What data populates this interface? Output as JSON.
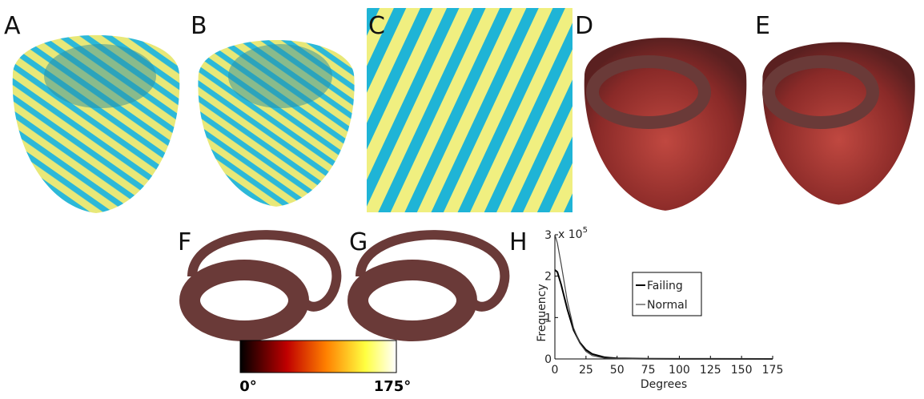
{
  "panels": {
    "labels": [
      "A",
      "B",
      "C",
      "D",
      "E",
      "F",
      "G",
      "H"
    ]
  },
  "colorbar": {
    "min_label": "0°",
    "max_label": "175°"
  },
  "chart_data": {
    "type": "line",
    "x_label": "Degrees",
    "y_label": "Frequency",
    "y_multiplier": {
      "base": "x 10",
      "exponent": "5"
    },
    "x": [
      0,
      2,
      5,
      10,
      15,
      20,
      25,
      30,
      40,
      50,
      75,
      100,
      175
    ],
    "series": [
      {
        "name": "Failing",
        "color": "#000000",
        "values": [
          2.15,
          2.1,
          1.8,
          1.2,
          0.7,
          0.4,
          0.22,
          0.12,
          0.04,
          0.015,
          0.005,
          0.002,
          0
        ]
      },
      {
        "name": "Normal",
        "color": "#444444",
        "values": [
          3.0,
          2.8,
          2.3,
          1.4,
          0.75,
          0.38,
          0.18,
          0.08,
          0.02,
          0.008,
          0.003,
          0.001,
          0
        ]
      }
    ],
    "xlim": [
      0,
      175
    ],
    "ylim": [
      0,
      3
    ],
    "xticks": [
      0,
      25,
      50,
      75,
      100,
      125,
      150,
      175
    ],
    "yticks": [
      0,
      1,
      2,
      3
    ],
    "legend": "upper right"
  }
}
